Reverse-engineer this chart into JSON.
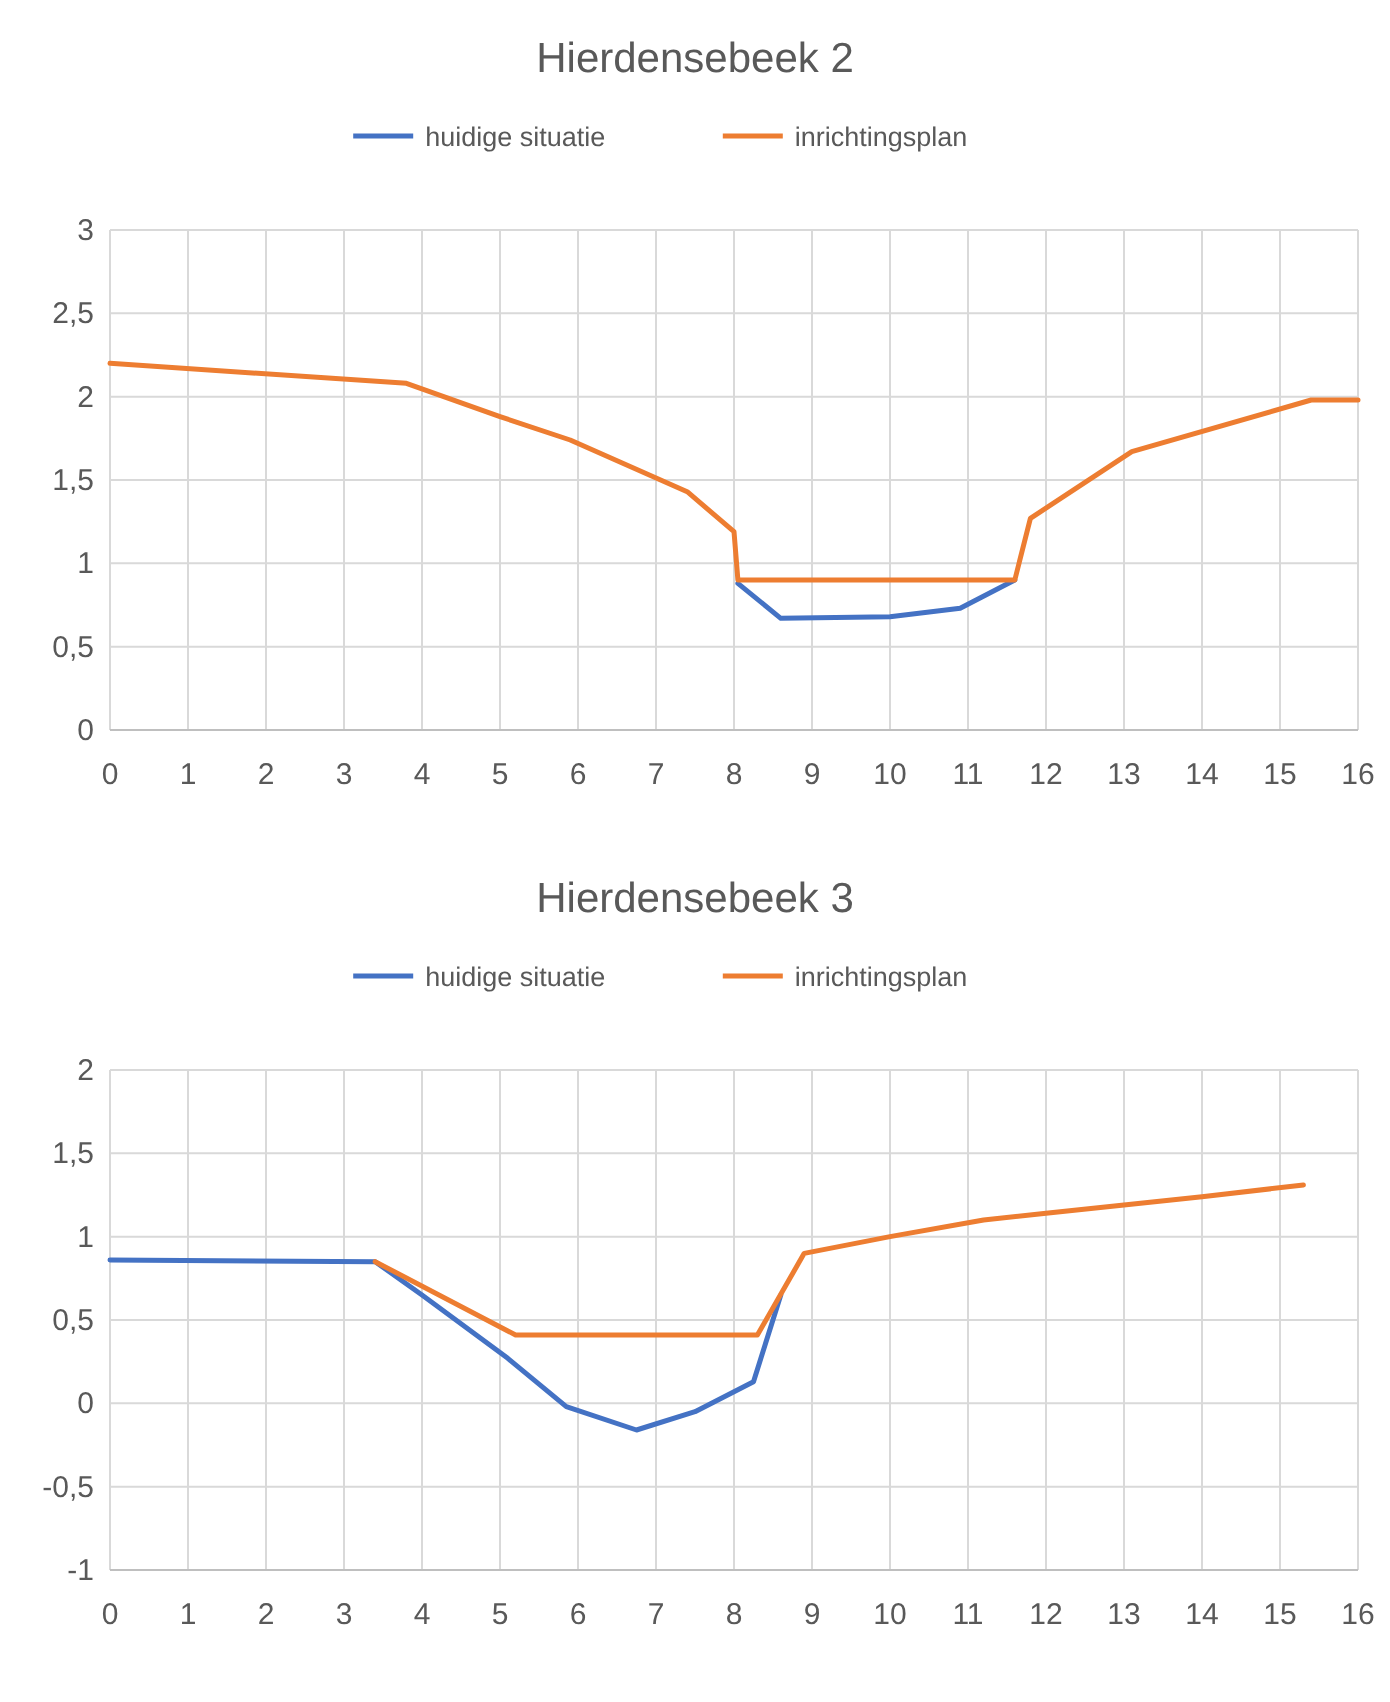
{
  "chart_data": [
    {
      "type": "line",
      "title": "Hierdensebeek 2",
      "xlim": [
        0,
        16
      ],
      "xticks": [
        0,
        1,
        2,
        3,
        4,
        5,
        6,
        7,
        8,
        9,
        10,
        11,
        12,
        13,
        14,
        15,
        16
      ],
      "ylim": [
        0,
        3
      ],
      "yticks": [
        0,
        {
          "value": 0.5,
          "label": "0,5"
        },
        1,
        {
          "value": 1.5,
          "label": "1,5"
        },
        2,
        {
          "value": 2.5,
          "label": "2,5"
        },
        3
      ],
      "grid": true,
      "legend": "top",
      "series": [
        {
          "name": "huidige situatie",
          "color": "#4472c4",
          "x": [
            8.05,
            8.6,
            10,
            10.9,
            11.6
          ],
          "values": [
            0.88,
            0.67,
            0.68,
            0.73,
            0.9
          ]
        },
        {
          "name": "inrichtingsplan",
          "color": "#ed7d31",
          "x": [
            0,
            3.8,
            5,
            5.9,
            7.4,
            8,
            8.05,
            11.6,
            11.8,
            13.1,
            15.4,
            16
          ],
          "values": [
            2.2,
            2.08,
            1.88,
            1.74,
            1.43,
            1.19,
            0.9,
            0.9,
            1.27,
            1.67,
            1.98,
            1.98
          ]
        }
      ]
    },
    {
      "type": "line",
      "title": "Hierdensebeek 3",
      "xlim": [
        0,
        16
      ],
      "xticks": [
        0,
        1,
        2,
        3,
        4,
        5,
        6,
        7,
        8,
        9,
        10,
        11,
        12,
        13,
        14,
        15,
        16
      ],
      "ylim": [
        -1,
        2
      ],
      "yticks": [
        -1,
        {
          "value": -0.5,
          "label": "-0,5"
        },
        0,
        {
          "value": 0.5,
          "label": "0,5"
        },
        1,
        {
          "value": 1.5,
          "label": "1,5"
        },
        2
      ],
      "grid": true,
      "legend": "top",
      "series": [
        {
          "name": "huidige situatie",
          "color": "#4472c4",
          "x": [
            0,
            3.4,
            4,
            5.1,
            5.85,
            6.75,
            7.5,
            8.25,
            8.6
          ],
          "values": [
            0.86,
            0.85,
            0.65,
            0.27,
            -0.02,
            -0.16,
            -0.05,
            0.13,
            0.65
          ]
        },
        {
          "name": "inrichtingsplan",
          "color": "#ed7d31",
          "x": [
            3.4,
            5.2,
            8.3,
            8.9,
            10,
            11.2,
            12,
            13,
            14,
            15.3
          ],
          "values": [
            0.85,
            0.41,
            0.41,
            0.9,
            1.0,
            1.1,
            1.14,
            1.19,
            1.24,
            1.31
          ]
        }
      ]
    }
  ]
}
